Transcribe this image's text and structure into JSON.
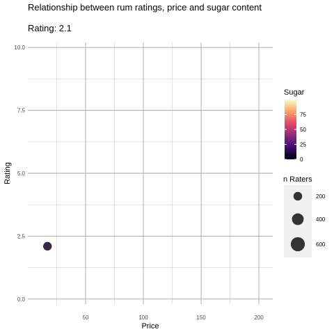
{
  "chart_data": {
    "type": "scatter",
    "title": "Relationship between rum ratings, price and sugar content",
    "subtitle": "Rating: 2.1",
    "xlabel": "Price",
    "ylabel": "Rating",
    "xlim": [
      0,
      212
    ],
    "ylim": [
      -0.2,
      10.2
    ],
    "x_ticks": [
      50,
      100,
      150,
      200
    ],
    "x_tick_labels": [
      "50",
      "100",
      "150",
      "200"
    ],
    "y_ticks": [
      0,
      2.5,
      5,
      7.5,
      10
    ],
    "y_tick_labels": [
      "0.0",
      "2.5",
      "5.0",
      "7.5",
      "10.0"
    ],
    "grid": true,
    "points": [
      {
        "x": 17,
        "y": 2.1,
        "sugar": 5,
        "raters": 200
      }
    ],
    "legend_sugar": {
      "title": "Sugar",
      "placement": "right",
      "range": [
        0,
        100
      ],
      "ticks": [
        0,
        25,
        50,
        75
      ],
      "tick_labels": [
        "0",
        "25",
        "50",
        "75"
      ],
      "colors": [
        "#000004",
        "#3b0f70",
        "#8c2981",
        "#de4968",
        "#fe9f6d",
        "#fcfdbf"
      ]
    },
    "legend_size": {
      "title": "n Raters",
      "placement": "right",
      "values": [
        200,
        400,
        600
      ],
      "labels": [
        "200",
        "400",
        "600"
      ],
      "color": "#333333"
    }
  }
}
